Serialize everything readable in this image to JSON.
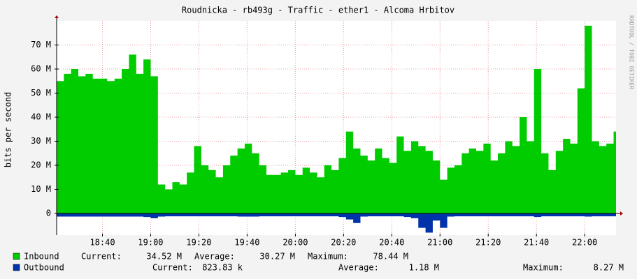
{
  "chart_data": {
    "type": "area",
    "title": "Roudnicka - rb493g - Traffic - ether1 - Alcoma Hrbitov",
    "y_label": "bits per second",
    "watermark": "RRDTOOL / TOBI OETIKER",
    "grid": true,
    "xlim": [
      "18:21",
      "22:13"
    ],
    "xticks": [
      "18:40",
      "19:00",
      "19:20",
      "19:40",
      "20:00",
      "20:20",
      "20:40",
      "21:00",
      "21:20",
      "21:40",
      "22:00"
    ],
    "ylim": [
      -9000000,
      80000000
    ],
    "yticks": [
      0,
      {
        "value": 10000000,
        "label": "10 M"
      },
      {
        "value": 20000000,
        "label": "20 M"
      },
      {
        "value": 30000000,
        "label": "30 M"
      },
      {
        "value": 40000000,
        "label": "40 M"
      },
      {
        "value": 50000000,
        "label": "50 M"
      },
      {
        "value": 60000000,
        "label": "60 M"
      },
      {
        "value": 70000000,
        "label": "70 M"
      }
    ],
    "x": [
      "18:21",
      "18:24",
      "18:27",
      "18:30",
      "18:33",
      "18:36",
      "18:39",
      "18:42",
      "18:45",
      "18:48",
      "18:51",
      "18:54",
      "18:57",
      "19:00",
      "19:03",
      "19:06",
      "19:09",
      "19:12",
      "19:15",
      "19:18",
      "19:21",
      "19:24",
      "19:27",
      "19:30",
      "19:33",
      "19:36",
      "19:39",
      "19:42",
      "19:45",
      "19:48",
      "19:51",
      "19:54",
      "19:57",
      "20:00",
      "20:03",
      "20:06",
      "20:09",
      "20:12",
      "20:15",
      "20:18",
      "20:21",
      "20:24",
      "20:27",
      "20:30",
      "20:33",
      "20:36",
      "20:39",
      "20:42",
      "20:45",
      "20:48",
      "20:51",
      "20:54",
      "20:57",
      "21:00",
      "21:03",
      "21:06",
      "21:09",
      "21:12",
      "21:15",
      "21:18",
      "21:21",
      "21:24",
      "21:27",
      "21:30",
      "21:33",
      "21:36",
      "21:39",
      "21:42",
      "21:45",
      "21:48",
      "21:51",
      "21:54",
      "21:57",
      "22:00",
      "22:03",
      "22:06",
      "22:09",
      "22:12"
    ],
    "series": [
      {
        "name": "Inbound",
        "color": "#00cc00",
        "values": [
          55000000,
          58000000,
          60000000,
          57000000,
          58000000,
          56000000,
          56000000,
          55000000,
          56000000,
          60000000,
          66000000,
          58000000,
          64000000,
          57000000,
          12000000,
          10000000,
          13000000,
          12000000,
          17000000,
          28000000,
          20000000,
          18000000,
          15000000,
          20000000,
          24000000,
          27000000,
          29000000,
          25000000,
          20000000,
          16000000,
          16000000,
          17000000,
          18000000,
          16000000,
          19000000,
          17000000,
          15000000,
          20000000,
          18000000,
          23000000,
          34000000,
          27000000,
          24000000,
          22000000,
          27000000,
          23000000,
          21000000,
          32000000,
          26000000,
          30000000,
          28000000,
          26000000,
          22000000,
          14000000,
          19000000,
          20000000,
          25000000,
          27000000,
          26000000,
          29000000,
          22000000,
          25000000,
          30000000,
          28000000,
          40000000,
          30000000,
          60000000,
          25000000,
          18000000,
          26000000,
          31000000,
          29000000,
          52000000,
          78000000,
          30000000,
          28000000,
          29000000,
          34000000
        ],
        "stats": [
          {
            "label": "Current:",
            "value": "34.52 M"
          },
          {
            "label": "Average:",
            "value": "30.27 M"
          },
          {
            "label": "Maximum:",
            "value": "78.44 M"
          }
        ]
      },
      {
        "name": "Outbound",
        "color": "#0033aa",
        "values": [
          -1300000,
          -1300000,
          -1300000,
          -1300000,
          -1300000,
          -1300000,
          -1300000,
          -1300000,
          -1300000,
          -1300000,
          -1300000,
          -1300000,
          -1500000,
          -2000000,
          -1300000,
          -1200000,
          -1200000,
          -1200000,
          -1200000,
          -1200000,
          -1200000,
          -1200000,
          -1200000,
          -1200000,
          -1200000,
          -1300000,
          -1300000,
          -1300000,
          -1200000,
          -1200000,
          -1200000,
          -1200000,
          -1200000,
          -1200000,
          -1200000,
          -1200000,
          -1200000,
          -1200000,
          -1200000,
          -1500000,
          -2500000,
          -4000000,
          -1300000,
          -1200000,
          -1200000,
          -1200000,
          -1200000,
          -1200000,
          -1500000,
          -2000000,
          -6000000,
          -8000000,
          -3000000,
          -6000000,
          -1300000,
          -1200000,
          -1200000,
          -1200000,
          -1200000,
          -1200000,
          -1200000,
          -1200000,
          -1200000,
          -1200000,
          -1200000,
          -1200000,
          -1500000,
          -1200000,
          -1200000,
          -1200000,
          -1200000,
          -1200000,
          -1200000,
          -1300000,
          -1200000,
          -1200000,
          -1200000,
          -1200000
        ],
        "stats": [
          {
            "label": "Current:",
            "value": "823.83 k"
          },
          {
            "label": "Average:",
            "value": "1.18 M"
          },
          {
            "label": "Maximum:",
            "value": "8.27 M"
          }
        ]
      }
    ]
  }
}
